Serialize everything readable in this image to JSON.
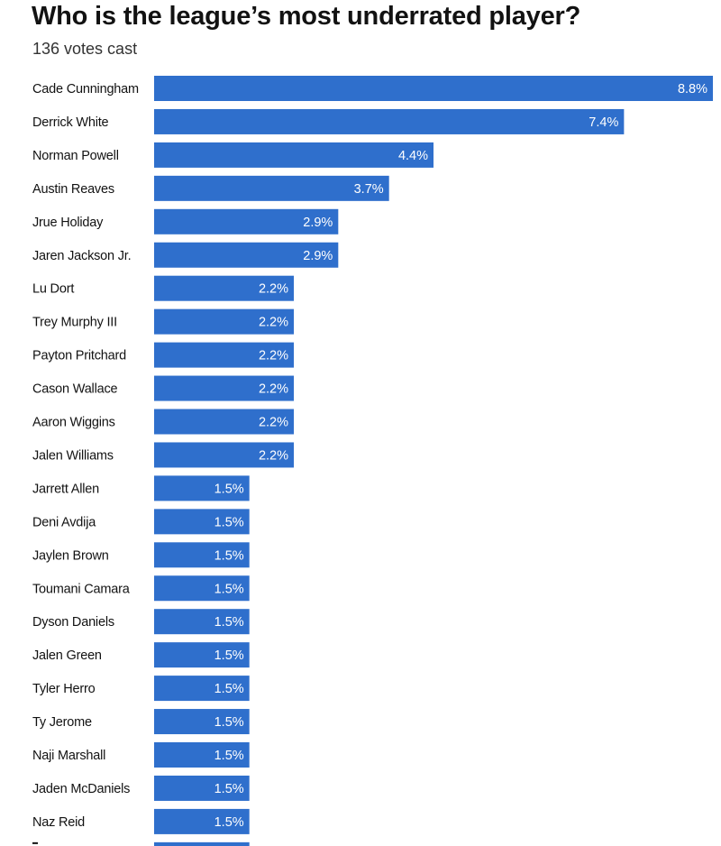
{
  "header": {
    "title": "Who is the league’s most underrated player?",
    "subtitle": "136 votes cast"
  },
  "colors": {
    "bar": "#2f6fcc",
    "label_text": "#121212",
    "value_text": "#ffffff"
  },
  "chart_data": {
    "type": "bar",
    "orientation": "horizontal",
    "title": "Who is the league’s most underrated player?",
    "subtitle": "136 votes cast",
    "value_suffix": "%",
    "xlim": [
      0,
      8.8
    ],
    "grid": false,
    "legend": "none",
    "categories": [
      "Cade Cunningham",
      "Derrick White",
      "Norman Powell",
      "Austin Reaves",
      "Jrue Holiday",
      "Jaren Jackson Jr.",
      "Lu Dort",
      "Trey Murphy III",
      "Payton Pritchard",
      "Cason Wallace",
      "Aaron Wiggins",
      "Jalen Williams",
      "Jarrett Allen",
      "Deni Avdija",
      "Jaylen Brown",
      "Toumani Camara",
      "Dyson Daniels",
      "Jalen Green",
      "Tyler Herro",
      "Ty Jerome",
      "Naji Marshall",
      "Jaden McDaniels",
      "Naz Reid"
    ],
    "values": [
      8.8,
      7.4,
      4.4,
      3.7,
      2.9,
      2.9,
      2.2,
      2.2,
      2.2,
      2.2,
      2.2,
      2.2,
      1.5,
      1.5,
      1.5,
      1.5,
      1.5,
      1.5,
      1.5,
      1.5,
      1.5,
      1.5,
      1.5
    ],
    "value_labels": [
      "8.8%",
      "7.4%",
      "4.4%",
      "3.7%",
      "2.9%",
      "2.9%",
      "2.2%",
      "2.2%",
      "2.2%",
      "2.2%",
      "2.2%",
      "2.2%",
      "1.5%",
      "1.5%",
      "1.5%",
      "1.5%",
      "1.5%",
      "1.5%",
      "1.5%",
      "1.5%",
      "1.5%",
      "1.5%",
      "1.5%"
    ],
    "truncated_next_value": 1.5
  }
}
